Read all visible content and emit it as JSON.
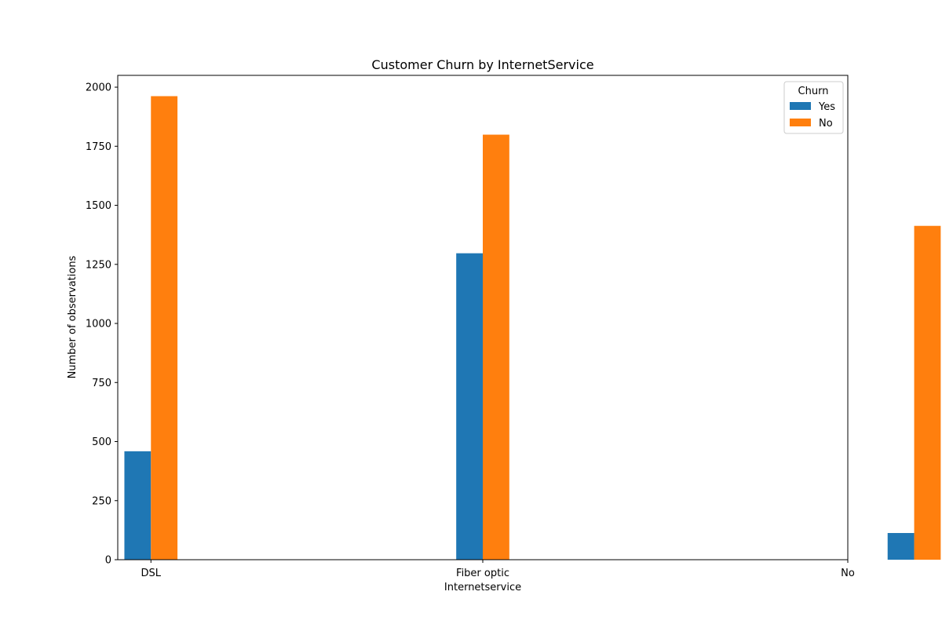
{
  "chart_data": {
    "type": "bar",
    "title": "Customer Churn by InternetService",
    "xlabel": "Internetservice",
    "ylabel": "Number of observations",
    "categories": [
      "DSL",
      "Fiber optic",
      "No"
    ],
    "x_positions": [
      0,
      1,
      2.3
    ],
    "x_range": [
      -0.1,
      2.1
    ],
    "ylim": [
      0,
      2050
    ],
    "yticks": [
      0,
      250,
      500,
      750,
      1000,
      1250,
      1500,
      1750,
      2000
    ],
    "series": [
      {
        "name": "Yes",
        "color": "#1f77b4",
        "values": [
          459,
          1297,
          113
        ]
      },
      {
        "name": "No",
        "color": "#ff7f0e",
        "values": [
          1962,
          1799,
          1413
        ]
      }
    ],
    "legend": {
      "title": "Churn",
      "position": "top-right"
    },
    "grid": false
  }
}
